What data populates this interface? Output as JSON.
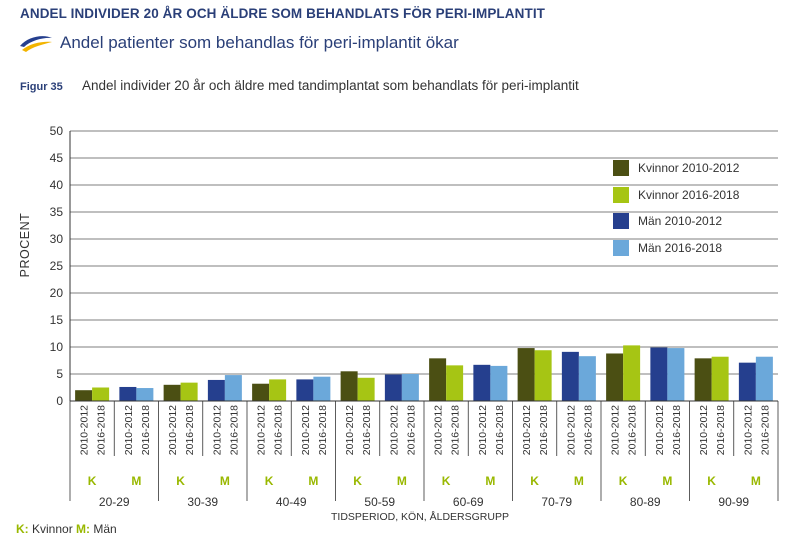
{
  "header": {
    "title": "ANDEL INDIVIDER 20 ÅR OCH ÄLDRE SOM BEHANDLATS FÖR PERI-IMPLANTIT",
    "subtitle": "Andel patienter som behandlas för peri-implantit ökar"
  },
  "figure": {
    "label": "Figur 35",
    "title": "Andel individer 20 år och äldre med tandimplantat som behandlats för peri-implantit"
  },
  "chart_data": {
    "type": "bar",
    "ylabel": "PROCENT",
    "xlabel": "TIDSPERIOD, KÖN, ÅLDERSGRUPP",
    "ylim": [
      0,
      50
    ],
    "yticks": [
      0,
      5,
      10,
      15,
      20,
      25,
      30,
      35,
      40,
      45,
      50
    ],
    "grid": true,
    "legend_position": "top-right",
    "periods": [
      "2010-2012",
      "2016-2018"
    ],
    "sexes": [
      "K",
      "M"
    ],
    "categories": [
      "20-29",
      "30-39",
      "40-49",
      "50-59",
      "60-69",
      "70-79",
      "80-89",
      "90-99"
    ],
    "series": [
      {
        "name": "Kvinnor 2010-2012",
        "color": "#4b4f13",
        "values": [
          2.0,
          3.0,
          3.2,
          5.5,
          7.9,
          9.8,
          8.8,
          7.9
        ]
      },
      {
        "name": "Kvinnor 2016-2018",
        "color": "#a6c514",
        "values": [
          2.5,
          3.4,
          4.0,
          4.3,
          6.6,
          9.4,
          10.3,
          8.2
        ]
      },
      {
        "name": "Män 2010-2012",
        "color": "#253f8e",
        "values": [
          2.6,
          3.9,
          4.0,
          4.9,
          6.7,
          9.1,
          9.9,
          7.1
        ]
      },
      {
        "name": "Män 2016-2018",
        "color": "#6ba8da",
        "values": [
          2.4,
          4.8,
          4.5,
          5.0,
          6.5,
          8.3,
          9.8,
          8.2
        ]
      }
    ]
  },
  "footnote": {
    "k_key": "K:",
    "k_label": "Kvinnor",
    "m_key": "M:",
    "m_label": "Män"
  },
  "colors": {
    "accent_green": "#99b800",
    "title_blue": "#2a3f78"
  }
}
